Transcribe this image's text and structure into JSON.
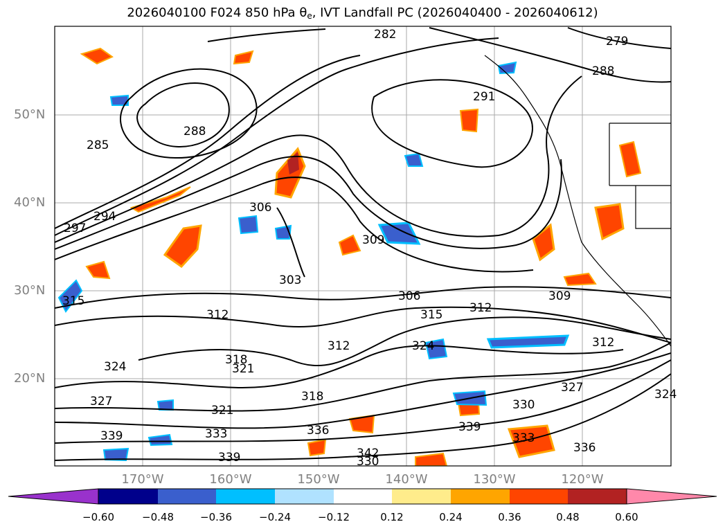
{
  "title": {
    "prefix": "2026040100 F024 850 hPa ",
    "theta": "θ",
    "theta_sub": "e",
    "suffix": ", IVT Landfall PC (2026040400 - 2026040612)"
  },
  "map": {
    "region": "North Pacific / western North America",
    "lat_labels": [
      "50°N",
      "40°N",
      "30°N",
      "20°N"
    ],
    "lon_labels": [
      "170°W",
      "160°W",
      "150°W",
      "140°W",
      "130°W",
      "120°W"
    ],
    "contour_field": "850 hPa equivalent potential temperature",
    "contour_labels": [
      "282",
      "279",
      "288",
      "291",
      "288",
      "285",
      "294",
      "297",
      "306",
      "309",
      "303",
      "306",
      "312",
      "309",
      "312",
      "315",
      "312",
      "324",
      "318",
      "321",
      "324",
      "327",
      "333",
      "339",
      "336",
      "339",
      "342",
      "330",
      "327",
      "324",
      "318",
      "321",
      "339",
      "333",
      "336",
      "330",
      "312",
      "315"
    ],
    "shading_field": "IVT Landfall PC"
  },
  "colorbar": {
    "ticks": [
      "−0.60",
      "−0.48",
      "−0.36",
      "−0.24",
      "−0.12",
      "0.12",
      "0.24",
      "0.36",
      "0.48",
      "0.60"
    ],
    "colors": [
      "#9932cc",
      "#00008b",
      "#3a5fcd",
      "#00bfff",
      "#b0e2ff",
      "#ffffff",
      "#ffec8b",
      "#ffa500",
      "#ff4500",
      "#b22222",
      "#ff88aa"
    ]
  }
}
